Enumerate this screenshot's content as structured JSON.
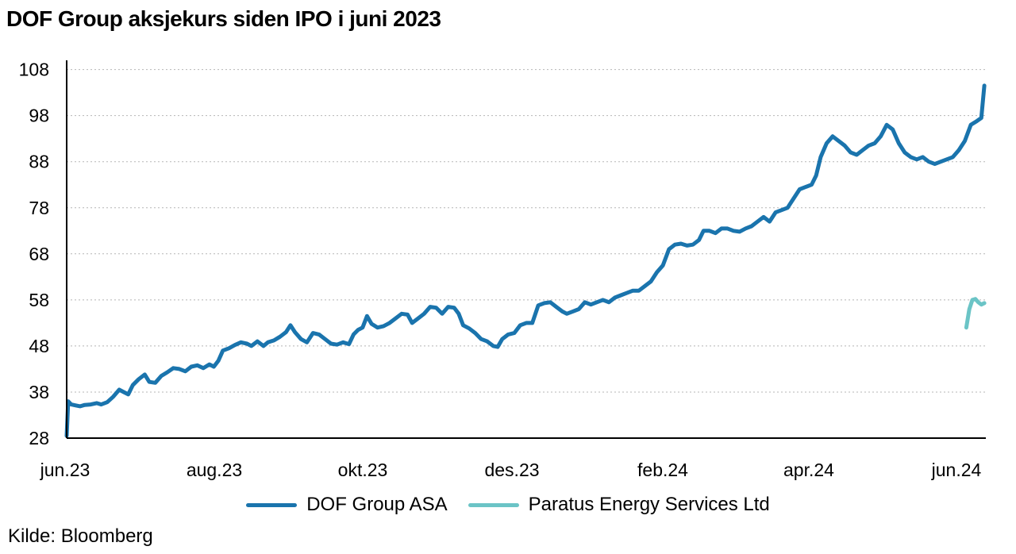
{
  "chart_data": {
    "type": "line",
    "title": "DOF Group aksjekurs siden IPO i juni 2023",
    "xlabel": "",
    "ylabel": "",
    "source": "Kilde: Bloomberg",
    "x_ticks": [
      "jun.23",
      "aug.23",
      "okt.23",
      "des.23",
      "feb.24",
      "apr.24",
      "jun.24"
    ],
    "y_ticks": [
      28,
      38,
      48,
      58,
      68,
      78,
      88,
      98,
      108
    ],
    "ylim": [
      28,
      110
    ],
    "grid": "horizontal-dashed",
    "legend_position": "bottom",
    "colors": {
      "dof": "#1a74ad",
      "paratus": "#6bc4c6",
      "grid": "#b5b5b5",
      "axis": "#000000"
    },
    "series": [
      {
        "name": "DOF Group ASA",
        "color": "#1a74ad",
        "points": [
          [
            0.0,
            28.5
          ],
          [
            0.05,
            36.0
          ],
          [
            0.15,
            35.3
          ],
          [
            0.3,
            35.1
          ],
          [
            0.45,
            34.9
          ],
          [
            0.6,
            35.2
          ],
          [
            0.8,
            35.3
          ],
          [
            1.0,
            35.6
          ],
          [
            1.15,
            35.3
          ],
          [
            1.35,
            35.8
          ],
          [
            1.55,
            37.0
          ],
          [
            1.75,
            38.5
          ],
          [
            1.9,
            38.0
          ],
          [
            2.05,
            37.5
          ],
          [
            2.2,
            39.5
          ],
          [
            2.4,
            40.8
          ],
          [
            2.6,
            41.8
          ],
          [
            2.75,
            40.2
          ],
          [
            2.95,
            40.0
          ],
          [
            3.15,
            41.5
          ],
          [
            3.35,
            42.3
          ],
          [
            3.55,
            43.2
          ],
          [
            3.75,
            43.0
          ],
          [
            3.95,
            42.5
          ],
          [
            4.15,
            43.5
          ],
          [
            4.35,
            43.8
          ],
          [
            4.55,
            43.2
          ],
          [
            4.75,
            44.0
          ],
          [
            4.9,
            43.5
          ],
          [
            5.05,
            44.8
          ],
          [
            5.2,
            47.0
          ],
          [
            5.4,
            47.5
          ],
          [
            5.6,
            48.2
          ],
          [
            5.8,
            48.8
          ],
          [
            6.0,
            48.5
          ],
          [
            6.15,
            48.0
          ],
          [
            6.35,
            49.0
          ],
          [
            6.55,
            48.0
          ],
          [
            6.7,
            48.8
          ],
          [
            6.9,
            49.2
          ],
          [
            7.1,
            50.0
          ],
          [
            7.3,
            51.0
          ],
          [
            7.45,
            52.5
          ],
          [
            7.6,
            51.0
          ],
          [
            7.8,
            49.5
          ],
          [
            8.0,
            48.8
          ],
          [
            8.2,
            50.8
          ],
          [
            8.4,
            50.5
          ],
          [
            8.6,
            49.5
          ],
          [
            8.8,
            48.5
          ],
          [
            9.0,
            48.3
          ],
          [
            9.2,
            48.8
          ],
          [
            9.4,
            48.4
          ],
          [
            9.55,
            50.5
          ],
          [
            9.7,
            51.5
          ],
          [
            9.85,
            52.0
          ],
          [
            10.0,
            54.5
          ],
          [
            10.15,
            52.8
          ],
          [
            10.35,
            52.0
          ],
          [
            10.55,
            52.3
          ],
          [
            10.75,
            53.0
          ],
          [
            10.95,
            54.0
          ],
          [
            11.15,
            55.0
          ],
          [
            11.35,
            54.8
          ],
          [
            11.5,
            53.0
          ],
          [
            11.7,
            54.0
          ],
          [
            11.9,
            55.0
          ],
          [
            12.1,
            56.5
          ],
          [
            12.3,
            56.3
          ],
          [
            12.5,
            55.0
          ],
          [
            12.7,
            56.5
          ],
          [
            12.9,
            56.3
          ],
          [
            13.05,
            55.0
          ],
          [
            13.2,
            52.5
          ],
          [
            13.4,
            51.8
          ],
          [
            13.6,
            50.8
          ],
          [
            13.8,
            49.5
          ],
          [
            14.0,
            49.0
          ],
          [
            14.2,
            48.0
          ],
          [
            14.35,
            47.8
          ],
          [
            14.5,
            49.5
          ],
          [
            14.7,
            50.5
          ],
          [
            14.9,
            50.8
          ],
          [
            15.1,
            52.5
          ],
          [
            15.3,
            53.0
          ],
          [
            15.5,
            53.0
          ],
          [
            15.7,
            56.8
          ],
          [
            15.9,
            57.3
          ],
          [
            16.1,
            57.5
          ],
          [
            16.3,
            56.5
          ],
          [
            16.5,
            55.5
          ],
          [
            16.65,
            55.0
          ],
          [
            16.85,
            55.5
          ],
          [
            17.05,
            56.0
          ],
          [
            17.25,
            57.5
          ],
          [
            17.45,
            57.0
          ],
          [
            17.65,
            57.5
          ],
          [
            17.85,
            58.0
          ],
          [
            18.05,
            57.5
          ],
          [
            18.25,
            58.5
          ],
          [
            18.45,
            59.0
          ],
          [
            18.65,
            59.5
          ],
          [
            18.85,
            60.0
          ],
          [
            19.05,
            60.0
          ],
          [
            19.25,
            61.0
          ],
          [
            19.45,
            62.0
          ],
          [
            19.65,
            64.0
          ],
          [
            19.85,
            65.5
          ],
          [
            20.05,
            69.0
          ],
          [
            20.25,
            70.0
          ],
          [
            20.45,
            70.2
          ],
          [
            20.65,
            69.8
          ],
          [
            20.85,
            70.0
          ],
          [
            21.05,
            71.0
          ],
          [
            21.2,
            73.0
          ],
          [
            21.4,
            73.0
          ],
          [
            21.6,
            72.5
          ],
          [
            21.8,
            73.5
          ],
          [
            22.0,
            73.5
          ],
          [
            22.2,
            73.0
          ],
          [
            22.4,
            72.8
          ],
          [
            22.6,
            73.5
          ],
          [
            22.8,
            74.0
          ],
          [
            23.0,
            75.0
          ],
          [
            23.2,
            76.0
          ],
          [
            23.4,
            75.0
          ],
          [
            23.6,
            77.0
          ],
          [
            23.8,
            77.5
          ],
          [
            24.0,
            78.0
          ],
          [
            24.2,
            80.0
          ],
          [
            24.4,
            82.0
          ],
          [
            24.6,
            82.5
          ],
          [
            24.8,
            83.0
          ],
          [
            24.95,
            85.0
          ],
          [
            25.1,
            89.0
          ],
          [
            25.3,
            92.0
          ],
          [
            25.5,
            93.5
          ],
          [
            25.7,
            92.5
          ],
          [
            25.9,
            91.5
          ],
          [
            26.1,
            90.0
          ],
          [
            26.3,
            89.5
          ],
          [
            26.5,
            90.5
          ],
          [
            26.7,
            91.5
          ],
          [
            26.9,
            92.0
          ],
          [
            27.1,
            93.5
          ],
          [
            27.3,
            96.0
          ],
          [
            27.5,
            95.0
          ],
          [
            27.7,
            92.0
          ],
          [
            27.9,
            90.0
          ],
          [
            28.1,
            89.0
          ],
          [
            28.3,
            88.5
          ],
          [
            28.5,
            89.0
          ],
          [
            28.7,
            88.0
          ],
          [
            28.9,
            87.5
          ],
          [
            29.1,
            88.0
          ],
          [
            29.3,
            88.5
          ],
          [
            29.5,
            89.0
          ],
          [
            29.7,
            90.5
          ],
          [
            29.9,
            92.5
          ],
          [
            30.1,
            96.0
          ],
          [
            30.3,
            96.8
          ],
          [
            30.45,
            97.5
          ],
          [
            30.55,
            104.5
          ]
        ]
      },
      {
        "name": "Paratus Energy Services Ltd",
        "color": "#6bc4c6",
        "points": [
          [
            29.95,
            52.0
          ],
          [
            30.05,
            56.0
          ],
          [
            30.15,
            58.0
          ],
          [
            30.25,
            58.2
          ],
          [
            30.35,
            57.5
          ],
          [
            30.45,
            57.0
          ],
          [
            30.55,
            57.3
          ]
        ]
      }
    ]
  }
}
